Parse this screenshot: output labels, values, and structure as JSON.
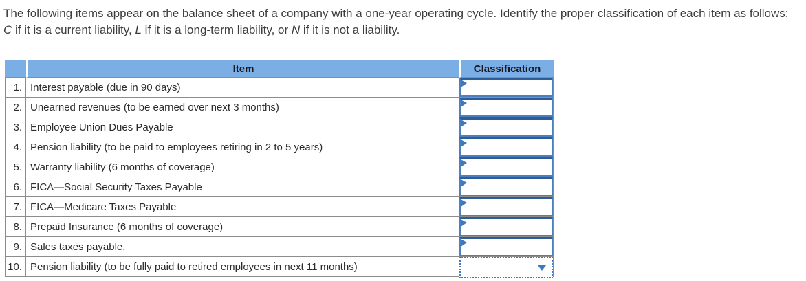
{
  "instructions": {
    "segments": [
      {
        "text": "The following items appear on the balance sheet of a company with a one-year operating cycle. Identify the proper classification of each item as follows: ",
        "italic": false
      },
      {
        "text": "C",
        "italic": true
      },
      {
        "text": " if it is a current liability, ",
        "italic": false
      },
      {
        "text": "L",
        "italic": true
      },
      {
        "text": " if it is a long-term liability, or ",
        "italic": false
      },
      {
        "text": "N",
        "italic": true
      },
      {
        "text": " if it is not a liability.",
        "italic": false
      }
    ]
  },
  "table": {
    "headers": {
      "number": "",
      "item": "Item",
      "classification": "Classification"
    },
    "rows": [
      {
        "number": "1.",
        "item": "Interest payable (due in 90 days)",
        "classification_value": "",
        "control": "input"
      },
      {
        "number": "2.",
        "item": "Unearned revenues (to be earned over next 3 months)",
        "classification_value": "",
        "control": "input"
      },
      {
        "number": "3.",
        "item": "Employee Union Dues Payable",
        "classification_value": "",
        "control": "input"
      },
      {
        "number": "4.",
        "item": "Pension liability (to be paid to employees retiring in 2 to 5 years)",
        "classification_value": "",
        "control": "input"
      },
      {
        "number": "5.",
        "item": "Warranty liability (6 months of coverage)",
        "classification_value": "",
        "control": "input"
      },
      {
        "number": "6.",
        "item": "FICA—Social Security Taxes Payable",
        "classification_value": "",
        "control": "input"
      },
      {
        "number": "7.",
        "item": "FICA—Medicare Taxes Payable",
        "classification_value": "",
        "control": "input"
      },
      {
        "number": "8.",
        "item": "Prepaid Insurance (6 months of coverage)",
        "classification_value": "",
        "control": "input"
      },
      {
        "number": "9.",
        "item": "Sales taxes payable.",
        "classification_value": "",
        "control": "input"
      },
      {
        "number": "10.",
        "item": "Pension liability (to be fully paid to retired employees in next 11 months)",
        "classification_value": "",
        "control": "dropdown-open"
      }
    ]
  },
  "icons": {
    "cell_flag": "flag-triangle-icon",
    "dropdown_arrow": "chevron-down-icon"
  },
  "colors": {
    "header_bg": "#7BAEE4",
    "input_border": "#4C7FC0",
    "input_border_top": "#2E5C99",
    "dropdown_accent": "#3B79C4",
    "grid_line": "#8C8C8C"
  }
}
